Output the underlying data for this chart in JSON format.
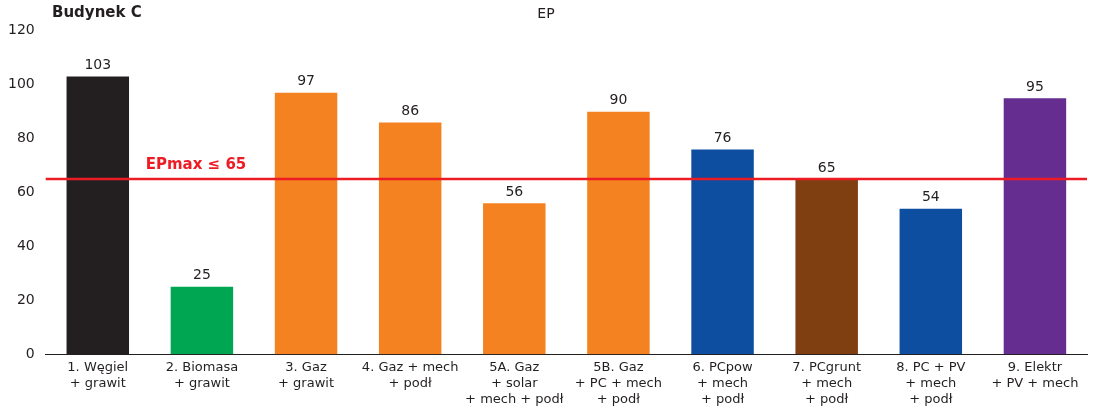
{
  "chart_data": {
    "type": "bar",
    "title": "EP",
    "subtitle": "Budynek C",
    "categories": [
      "1. Węgiel\n+ grawit",
      "2. Biomasa\n+ grawit",
      "3. Gaz\n+ grawit",
      "4. Gaz + mech\n+ podł",
      "5A. Gaz\n+ solar\n+ mech + podł",
      "5B. Gaz\n+ PC + mech\n+ podł",
      "6. PCpow\n+ mech\n+ podł",
      "7. PCgrunt\n+ mech\n+ podł",
      "8. PC + PV\n+ mech\n+ podł",
      "9. Elektr\n+ PV + mech"
    ],
    "values": [
      103,
      25,
      97,
      86,
      56,
      90,
      76,
      65,
      54,
      95
    ],
    "colors": [
      "#231f20",
      "#00a651",
      "#f58220",
      "#f58220",
      "#f58220",
      "#f58220",
      "#0d4ea1",
      "#7f3f10",
      "#0d4ea1",
      "#662d91"
    ],
    "ylim": [
      0,
      120
    ],
    "yticks": [
      0,
      20,
      40,
      60,
      80,
      100,
      120
    ],
    "grid": false,
    "data_labels": true,
    "legend": false,
    "ref_lines": [
      {
        "axis": "y",
        "value": 65,
        "label": "EPmax ≤ 65",
        "color": "#ed1c24"
      }
    ]
  }
}
